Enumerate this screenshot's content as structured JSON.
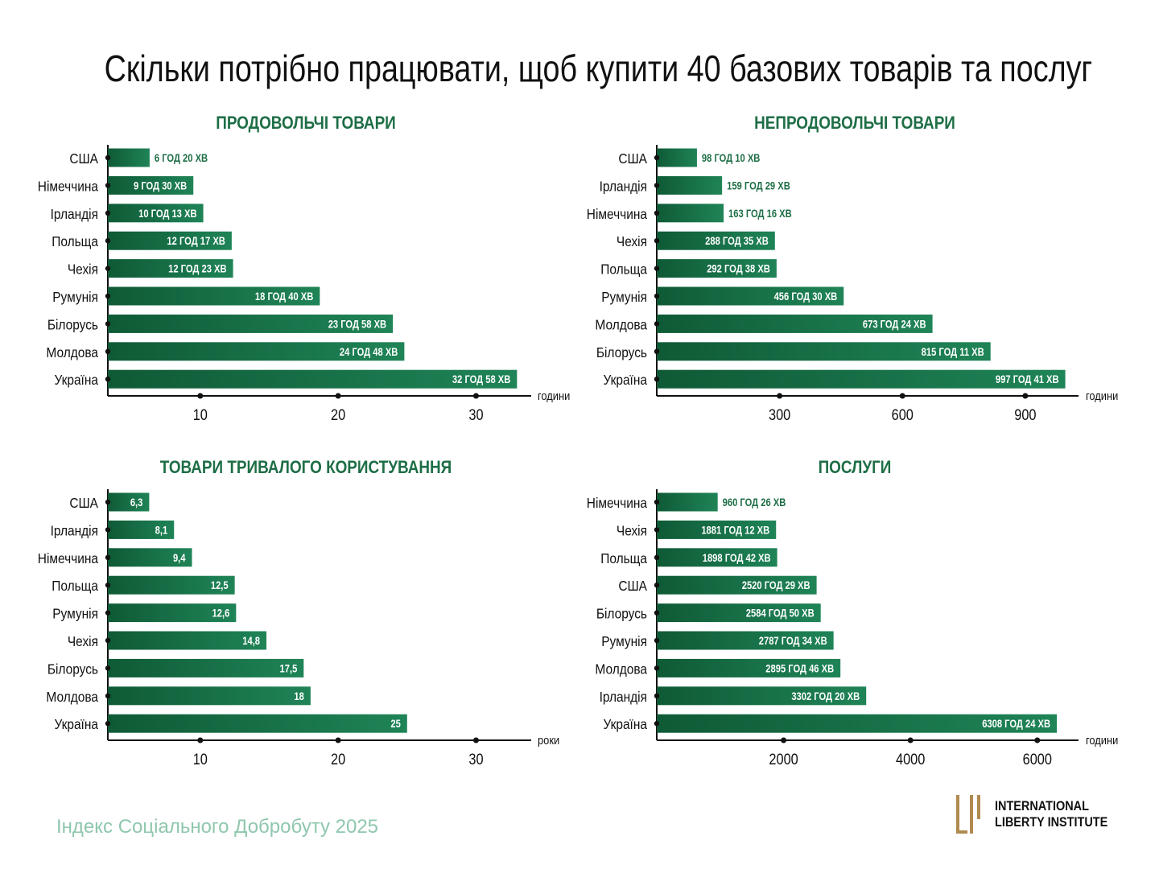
{
  "page": {
    "title": "Скільки потрібно працювати, щоб купити 40 базових товарів та послуг",
    "footer": "Індекс Соціального Добробуту 2025",
    "logo_line1": "International",
    "logo_line2": "Liberty Institute"
  },
  "colors": {
    "bar_dark": "#0f5a36",
    "bar_light": "#1f8457",
    "title_green": "#1e6e46",
    "footer": "#8fc7ad",
    "logo_gold": "#b08a4f"
  },
  "chart_data": [
    {
      "type": "bar",
      "orientation": "horizontal",
      "title": "ПРОДОВОЛЬЧІ ТОВАРИ",
      "unit_label": "години",
      "categories": [
        "США",
        "Німеччина",
        "Ірландія",
        "Польща",
        "Чехія",
        "Румунія",
        "Білорусь",
        "Молдова",
        "Україна"
      ],
      "values": [
        6.33,
        9.5,
        10.22,
        12.28,
        12.38,
        18.67,
        23.97,
        24.8,
        32.97
      ],
      "value_labels": [
        "6 ГОД 20 ХВ",
        "9 ГОД 30 ХВ",
        "10 ГОД 13 ХВ",
        "12 ГОД 17 ХВ",
        "12 ГОД 23 ХВ",
        "18 ГОД 40 ХВ",
        "23 ГОД 58 ХВ",
        "24 ГОД 48 ХВ",
        "32 ГОД 58 ХВ"
      ],
      "xticks": [
        10,
        20,
        30
      ],
      "xlim": [
        3.3,
        34
      ]
    },
    {
      "type": "bar",
      "orientation": "horizontal",
      "title": "НЕПРОДОВОЛЬЧІ ТОВАРИ",
      "unit_label": "години",
      "categories": [
        "США",
        "Ірландія",
        "Німеччина",
        "Чехія",
        "Польща",
        "Румунія",
        "Молдова",
        "Білорусь",
        "Україна"
      ],
      "values": [
        98.17,
        159.48,
        163.27,
        288.58,
        292.63,
        456.5,
        673.4,
        815.18,
        997.68
      ],
      "value_labels": [
        "98 ГОД 10 ХВ",
        "159 ГОД 29 ХВ",
        "163 ГОД 16 ХВ",
        "288 ГОД 35 ХВ",
        "292 ГОД 38 ХВ",
        "456 ГОД 30 ХВ",
        "673 ГОД 24 ХВ",
        "815 ГОД 11 ХВ",
        "997 ГОД 41 ХВ"
      ],
      "xticks": [
        300,
        600,
        900
      ],
      "xlim": [
        0,
        1030
      ]
    },
    {
      "type": "bar",
      "orientation": "horizontal",
      "title": "ТОВАРИ ТРИВАЛОГО КОРИСТУВАННЯ",
      "unit_label": "роки",
      "categories": [
        "США",
        "Ірландія",
        "Німеччина",
        "Польща",
        "Румунія",
        "Чехія",
        "Білорусь",
        "Молдова",
        "Україна"
      ],
      "values": [
        6.3,
        8.1,
        9.4,
        12.5,
        12.6,
        14.8,
        17.5,
        18,
        25
      ],
      "value_labels": [
        "6,3",
        "8,1",
        "9,4",
        "12,5",
        "12,6",
        "14,8",
        "17,5",
        "18",
        "25"
      ],
      "xticks": [
        10,
        20,
        30
      ],
      "xlim": [
        3.3,
        34
      ]
    },
    {
      "type": "bar",
      "orientation": "horizontal",
      "title": "ПОСЛУГИ",
      "unit_label": "години",
      "categories": [
        "Німеччина",
        "Чехія",
        "Польща",
        "США",
        "Білорусь",
        "Румунія",
        "Молдова",
        "Ірландія",
        "Україна"
      ],
      "values": [
        960.43,
        1881.2,
        1898.7,
        2520.48,
        2584.83,
        2787.57,
        2895.77,
        3302.33,
        6308.4
      ],
      "value_labels": [
        "960 ГОД 26 ХВ",
        "1881 ГОД 12 ХВ",
        "1898 ГОД 42 ХВ",
        "2520 ГОД 29 ХВ",
        "2584 ГОД 50 ХВ",
        "2787 ГОД 34 ХВ",
        "2895 ГОД 46 ХВ",
        "3302 ГОД 20 ХВ",
        "6308 ГОД 24 ХВ"
      ],
      "xticks": [
        2000,
        4000,
        6000
      ],
      "xlim": [
        0,
        6650
      ]
    }
  ]
}
